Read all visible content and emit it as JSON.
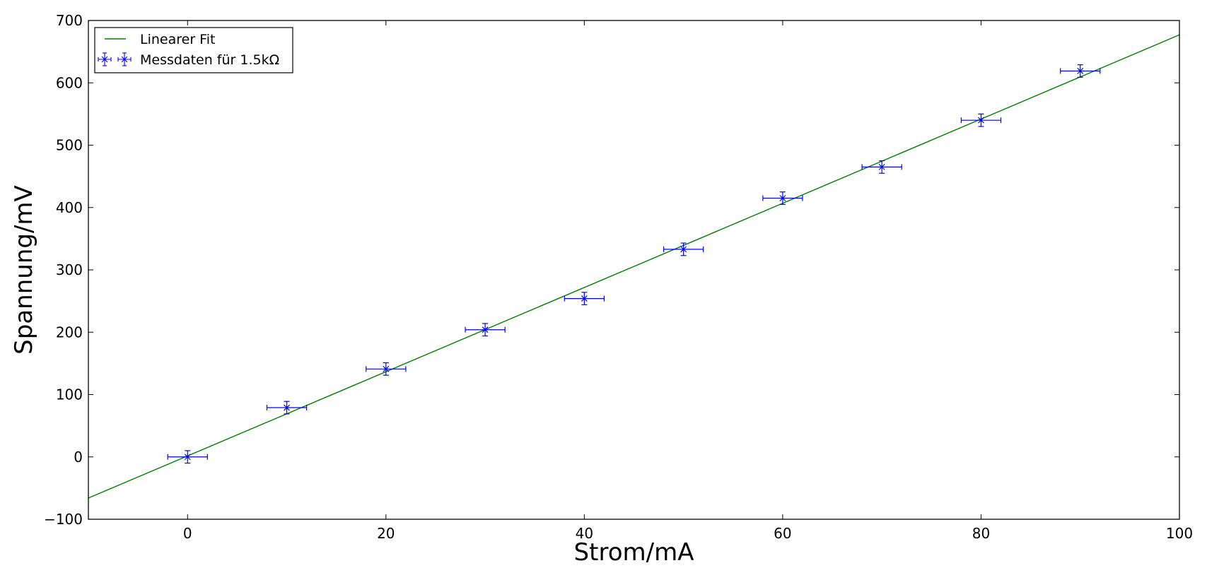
{
  "chart_data": {
    "type": "scatter",
    "title": "",
    "xlabel": "Strom/mA",
    "ylabel": "Spannung/mV",
    "xlim": [
      -10,
      100
    ],
    "ylim": [
      -100,
      700
    ],
    "xticks": [
      0,
      20,
      40,
      60,
      80,
      100
    ],
    "yticks": [
      -100,
      0,
      100,
      200,
      300,
      400,
      500,
      600,
      700
    ],
    "grid": false,
    "legend_position": "top-left",
    "series": [
      {
        "name": "Linearer Fit",
        "kind": "line",
        "color": "#008000",
        "x": [
          -10,
          100
        ],
        "y": [
          -66,
          677
        ]
      },
      {
        "name": "Messdaten für 1.5kΩ",
        "kind": "errorbar",
        "color": "#0000ff",
        "marker": "x",
        "x": [
          0,
          10,
          20,
          30,
          40,
          50,
          60,
          70,
          80,
          90
        ],
        "y": [
          0,
          79,
          141,
          204,
          254,
          333,
          415,
          465,
          540,
          619
        ],
        "x_err": 2,
        "y_err": 10
      }
    ]
  }
}
